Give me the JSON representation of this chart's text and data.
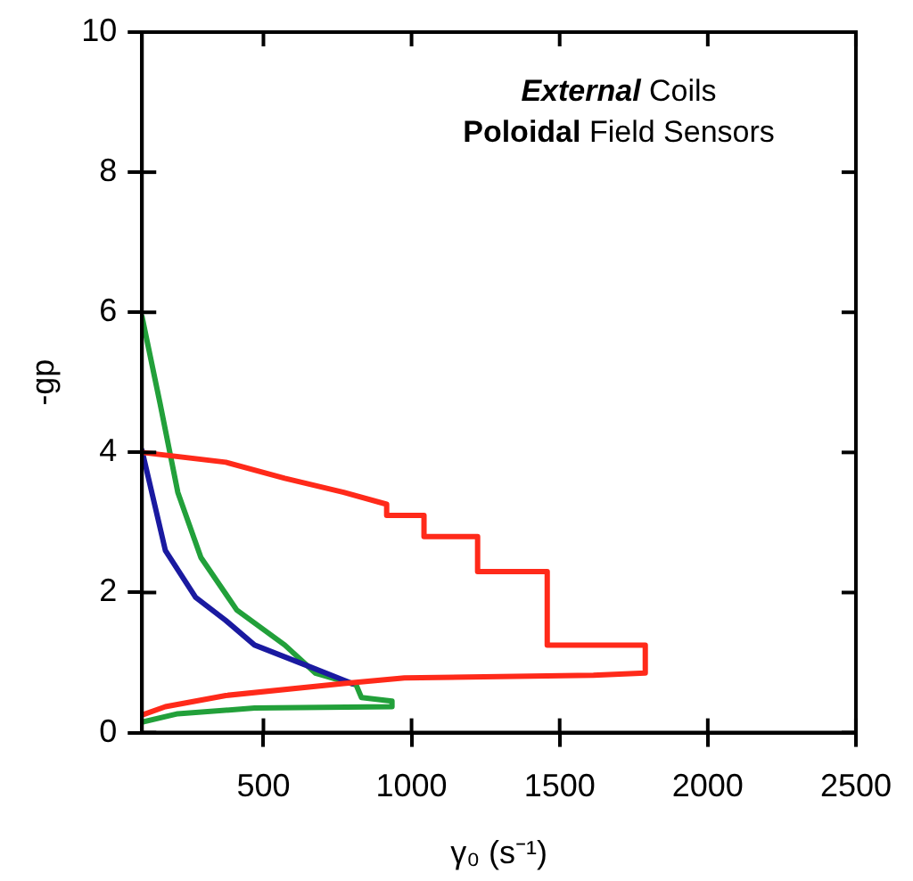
{
  "chart_data": {
    "type": "line",
    "xlabel": "γ₀ (s⁻¹)",
    "ylabel": "-gp",
    "annotations": [
      "External Coils",
      "Poloidal Field Sensors"
    ],
    "xlim": [
      90,
      2500
    ],
    "xticks": [
      500,
      1000,
      1500,
      2000,
      2500
    ],
    "ylim": [
      0,
      10
    ],
    "yticks": [
      0,
      2,
      4,
      6,
      8,
      10
    ],
    "grid": false,
    "legend": false,
    "marker": "none",
    "line_style": "solid",
    "series": [
      {
        "color": "#ff2a1a",
        "x": [
          90,
          373,
          572,
          771,
          916,
          916,
          1042,
          1042,
          1223,
          1223,
          1458,
          1458,
          1789,
          1789,
          1614,
          976,
          771,
          373,
          169,
          90
        ],
        "values": [
          4.0,
          3.86,
          3.63,
          3.43,
          3.26,
          3.1,
          3.1,
          2.8,
          2.8,
          2.3,
          2.3,
          1.25,
          1.25,
          0.85,
          0.82,
          0.78,
          0.7,
          0.53,
          0.37,
          0.25
        ]
      },
      {
        "color": "#1a1aa0",
        "x": [
          90,
          169,
          271,
          373,
          470,
          633,
          771,
          800
        ],
        "values": [
          4.03,
          2.6,
          1.93,
          1.6,
          1.25,
          0.98,
          0.75,
          0.7
        ]
      },
      {
        "color": "#22a03a",
        "x": [
          90,
          151,
          211,
          289,
          410,
          572,
          675,
          813,
          831,
          934,
          934,
          470,
          211,
          90
        ],
        "values": [
          5.94,
          4.7,
          3.43,
          2.5,
          1.75,
          1.25,
          0.85,
          0.68,
          0.5,
          0.45,
          0.37,
          0.35,
          0.27,
          0.15
        ]
      }
    ]
  }
}
